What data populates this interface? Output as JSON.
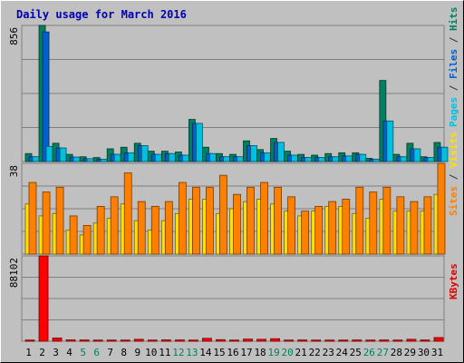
{
  "chart_data": {
    "type": "bar",
    "title": "Daily usage for March 2016",
    "categories": [
      "1",
      "2",
      "3",
      "4",
      "5",
      "6",
      "7",
      "8",
      "9",
      "10",
      "11",
      "12",
      "13",
      "14",
      "15",
      "16",
      "17",
      "18",
      "19",
      "20",
      "21",
      "22",
      "23",
      "24",
      "25",
      "26",
      "27",
      "28",
      "29",
      "30",
      "31"
    ],
    "weekend_days": [
      "5",
      "6",
      "12",
      "13",
      "19",
      "20",
      "26",
      "27"
    ],
    "panels": [
      {
        "id": "hits",
        "ymax_label": "856",
        "ylim": [
          0,
          856
        ],
        "legend": [
          {
            "text": "Pages",
            "color": "#00c0e0"
          },
          {
            "text": " / ",
            "color": "#333333"
          },
          {
            "text": "Files",
            "color": "#0060d0"
          },
          {
            "text": " / ",
            "color": "#333333"
          },
          {
            "text": "Hits",
            "color": "#008060"
          }
        ],
        "series": [
          {
            "name": "Hits",
            "color": "#008060",
            "values": [
              50,
              856,
              115,
              45,
              30,
              25,
              80,
              90,
              115,
              65,
              65,
              60,
              265,
              90,
              50,
              45,
              130,
              75,
              145,
              65,
              45,
              40,
              50,
              55,
              55,
              20,
              510,
              45,
              115,
              30,
              120
            ]
          },
          {
            "name": "Files",
            "color": "#0060d0",
            "values": [
              30,
              815,
              85,
              28,
              18,
              15,
              45,
              55,
              100,
              45,
              50,
              40,
              240,
              50,
              30,
              30,
              100,
              55,
              120,
              40,
              25,
              25,
              30,
              35,
              45,
              15,
              255,
              30,
              80,
              25,
              90
            ]
          },
          {
            "name": "Pages",
            "color": "#00c0e0",
            "values": [
              30,
              95,
              85,
              28,
              18,
              15,
              45,
              55,
              100,
              45,
              50,
              40,
              240,
              50,
              30,
              30,
              100,
              55,
              120,
              40,
              25,
              25,
              30,
              35,
              45,
              15,
              255,
              30,
              80,
              25,
              90
            ]
          }
        ]
      },
      {
        "id": "visits",
        "ymax_label": "38",
        "ylim": [
          0,
          38
        ],
        "legend": [
          {
            "text": "Sites",
            "color": "#ff8000"
          },
          {
            "text": " / ",
            "color": "#333333"
          },
          {
            "text": "Visits",
            "color": "#ffe000"
          }
        ],
        "series": [
          {
            "name": "Visits",
            "color": "#ffe000",
            "values": [
              21,
              16,
              17,
              10,
              8,
              13,
              15,
              21,
              14,
              10,
              14,
              17,
              23,
              23,
              17,
              19,
              22,
              23,
              21,
              18,
              16,
              18,
              20,
              20,
              17,
              15,
              23,
              18,
              18,
              18,
              25
            ]
          },
          {
            "name": "Sites",
            "color": "#ff8000",
            "values": [
              30,
              26,
              28,
              16,
              12,
              20,
              24,
              34,
              22,
              20,
              22,
              30,
              28,
              28,
              33,
              25,
              28,
              30,
              28,
              24,
              18,
              20,
              22,
              23,
              28,
              26,
              28,
              24,
              22,
              24,
              38
            ]
          }
        ]
      },
      {
        "id": "kbytes",
        "ymax_label": "88102",
        "ylim": [
          0,
          88102
        ],
        "legend": [
          {
            "text": "KBytes",
            "color": "#e00000"
          }
        ],
        "series": [
          {
            "name": "KBytes",
            "color": "#ff0000",
            "values": [
              1200,
              88102,
              3300,
              1400,
              1300,
              1200,
              1200,
              1200,
              2000,
              1200,
              1400,
              1300,
              1200,
              3000,
              1600,
              1200,
              2200,
              2000,
              2600,
              1200,
              1300,
              1200,
              1200,
              1200,
              1300,
              1200,
              1300,
              1200,
              2000,
              1300,
              3800
            ]
          }
        ]
      }
    ]
  }
}
